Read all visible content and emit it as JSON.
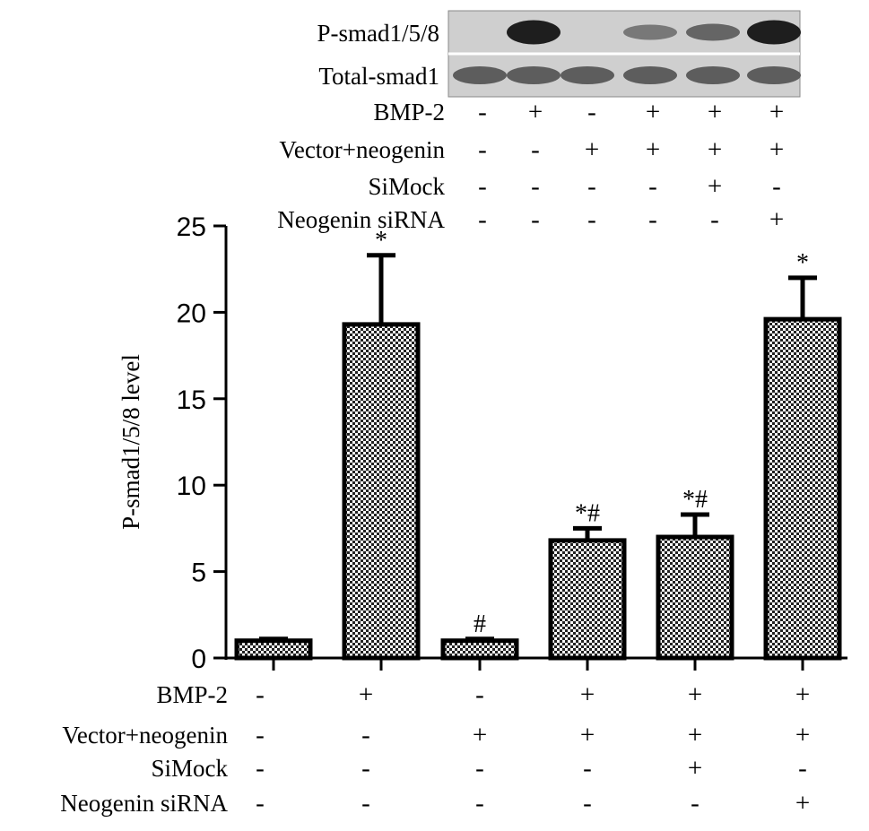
{
  "blot": {
    "bands": [
      {
        "label": "P-smad1/5/8",
        "intensity": [
          0.0,
          0.95,
          0.0,
          0.45,
          0.55,
          0.95
        ]
      },
      {
        "label": "Total-smad1",
        "intensity": [
          0.6,
          0.6,
          0.6,
          0.6,
          0.6,
          0.6
        ]
      }
    ]
  },
  "treatments": [
    {
      "label": "BMP-2",
      "signs": [
        "-",
        "+",
        "-",
        "+",
        "+",
        "+"
      ]
    },
    {
      "label": "Vector+neogenin",
      "signs": [
        "-",
        "-",
        "+",
        "+",
        "+",
        "+"
      ]
    },
    {
      "label": "SiMock",
      "signs": [
        "-",
        "-",
        "-",
        "-",
        "+",
        "-"
      ]
    },
    {
      "label": "Neogenin siRNA",
      "signs": [
        "-",
        "-",
        "-",
        "-",
        "-",
        "+"
      ]
    }
  ],
  "chart_data": {
    "type": "bar",
    "title": "",
    "xlabel": "",
    "ylabel": "P-smad1/5/8 level",
    "ylim": [
      0,
      25
    ],
    "yticks": [
      0,
      5,
      10,
      15,
      20,
      25
    ],
    "grid": false,
    "bar_pattern": "checkered",
    "values": [
      1.0,
      19.3,
      1.0,
      6.8,
      7.0,
      19.6
    ],
    "errors": [
      0.1,
      4.0,
      0.1,
      0.7,
      1.3,
      2.4
    ],
    "annotations": [
      "",
      "*",
      "#",
      "*#",
      "*#",
      "*"
    ]
  }
}
